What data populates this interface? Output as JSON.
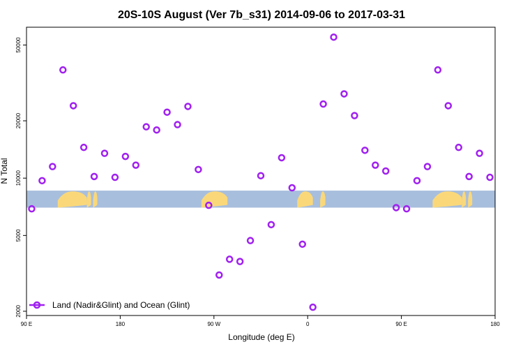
{
  "chart_data": {
    "type": "scatter",
    "title": "20S-10S August (Ver 7b_s31)   2014-09-06 to 2017-03-31",
    "xlabel": "Longitude (deg E)",
    "ylabel": "N Total",
    "x_ticks": [
      {
        "value": 90,
        "label": "90 E"
      },
      {
        "value": 180,
        "label": "180"
      },
      {
        "value": 270,
        "label": "90 W"
      },
      {
        "value": 360,
        "label": "0"
      },
      {
        "value": 450,
        "label": "90 E"
      },
      {
        "value": 540,
        "label": "180"
      }
    ],
    "xlim": [
      90,
      540
    ],
    "y_scale": "log",
    "y_ticks": [
      2000,
      5000,
      10000,
      20000,
      50000
    ],
    "ylim": [
      1900,
      62000
    ],
    "grid": false,
    "legend_position": "bottom-left",
    "series": [
      {
        "name": "Land (Nadir&Glint) and Ocean (Glint)",
        "color": "#a020f0",
        "marker": "open-circle",
        "points": [
          {
            "x": 95,
            "y": 6900
          },
          {
            "x": 105,
            "y": 9700
          },
          {
            "x": 115,
            "y": 11500
          },
          {
            "x": 125,
            "y": 37000
          },
          {
            "x": 135,
            "y": 24000
          },
          {
            "x": 145,
            "y": 14500
          },
          {
            "x": 155,
            "y": 10200
          },
          {
            "x": 165,
            "y": 13500
          },
          {
            "x": 175,
            "y": 10100
          },
          {
            "x": 185,
            "y": 13000
          },
          {
            "x": 195,
            "y": 11700
          },
          {
            "x": 205,
            "y": 18600
          },
          {
            "x": 215,
            "y": 17900
          },
          {
            "x": 225,
            "y": 22200
          },
          {
            "x": 235,
            "y": 19100
          },
          {
            "x": 245,
            "y": 23800
          },
          {
            "x": 255,
            "y": 11100
          },
          {
            "x": 265,
            "y": 7200
          },
          {
            "x": 275,
            "y": 3100
          },
          {
            "x": 285,
            "y": 3750
          },
          {
            "x": 295,
            "y": 3650
          },
          {
            "x": 305,
            "y": 4700
          },
          {
            "x": 315,
            "y": 10300
          },
          {
            "x": 325,
            "y": 5700
          },
          {
            "x": 335,
            "y": 12800
          },
          {
            "x": 345,
            "y": 8900
          },
          {
            "x": 355,
            "y": 4500
          },
          {
            "x": 365,
            "y": 2100
          },
          {
            "x": 375,
            "y": 24500
          },
          {
            "x": 385,
            "y": 55000
          },
          {
            "x": 395,
            "y": 27700
          },
          {
            "x": 405,
            "y": 21300
          },
          {
            "x": 415,
            "y": 14000
          },
          {
            "x": 425,
            "y": 11700
          },
          {
            "x": 435,
            "y": 10900
          },
          {
            "x": 445,
            "y": 7000
          },
          {
            "x": 455,
            "y": 6900
          },
          {
            "x": 465,
            "y": 9700
          },
          {
            "x": 475,
            "y": 11500
          },
          {
            "x": 485,
            "y": 37000
          },
          {
            "x": 495,
            "y": 24000
          },
          {
            "x": 505,
            "y": 14500
          },
          {
            "x": 515,
            "y": 10200
          },
          {
            "x": 525,
            "y": 13500
          },
          {
            "x": 535,
            "y": 10100
          }
        ]
      }
    ],
    "background_band": {
      "ocean_color": "#a8bedd",
      "land_color": "#fad87a",
      "y_top": 8600,
      "y_bottom": 7000,
      "land_segments": [
        [
          120,
          148
        ],
        [
          148,
          152
        ],
        [
          154,
          158
        ],
        [
          258,
          283
        ],
        [
          350,
          365
        ],
        [
          372,
          377
        ],
        [
          480,
          508
        ],
        [
          508,
          512
        ],
        [
          514,
          518
        ]
      ]
    }
  }
}
